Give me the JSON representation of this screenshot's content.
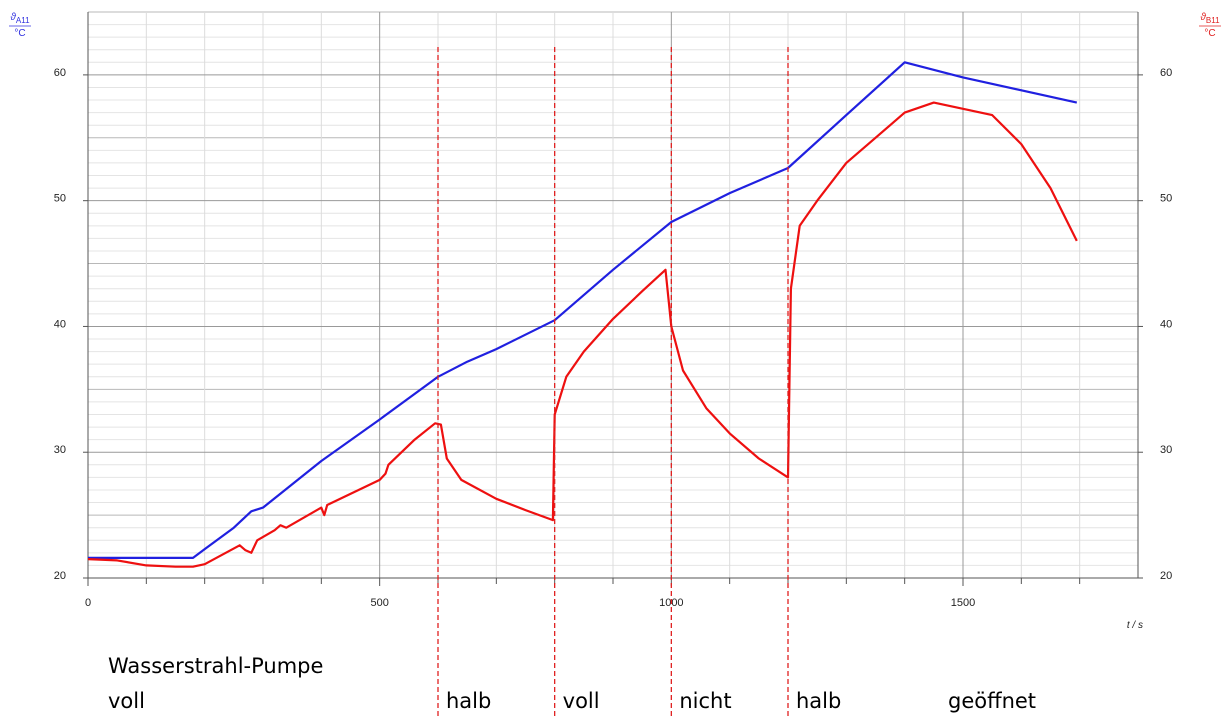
{
  "chart_data": {
    "type": "line",
    "xlim": [
      0,
      1800
    ],
    "xticks": [
      0,
      500,
      1000,
      1500
    ],
    "xminor": [
      100,
      200,
      300,
      400,
      600,
      700,
      800,
      900,
      1100,
      1200,
      1300,
      1400,
      1600,
      1700
    ],
    "ylim": [
      20,
      65
    ],
    "yticks": [
      20,
      30,
      40,
      50,
      60
    ],
    "y2lim": [
      20,
      65
    ],
    "y2ticks": [
      20,
      30,
      40,
      50,
      60
    ],
    "yminor": [
      21,
      22,
      23,
      24,
      25,
      26,
      27,
      28,
      29,
      31,
      32,
      33,
      34,
      35,
      36,
      37,
      38,
      39,
      41,
      42,
      43,
      44,
      45,
      46,
      47,
      48,
      49,
      51,
      52,
      53,
      54,
      55,
      56,
      57,
      58,
      59,
      61,
      62,
      63,
      64,
      65
    ],
    "grid": true,
    "ylabel_symbol": "ϑ",
    "ylabel_sub": "A11",
    "yunit": "°C",
    "ylabel_color": "#3030e0",
    "y2label_symbol": "ϑ",
    "y2label_sub": "B11",
    "y2unit": "°C",
    "y2label_color": "#e02020",
    "xlabel": "t / s",
    "series": [
      {
        "color": "#2020e0",
        "axis": "y",
        "x": [
          0,
          100,
          180,
          200,
          250,
          280,
          300,
          400,
          500,
          600,
          650,
          700,
          800,
          900,
          1000,
          1100,
          1200,
          1300,
          1400,
          1500,
          1695
        ],
        "values": [
          21.6,
          21.6,
          21.6,
          22.3,
          24.0,
          25.3,
          25.6,
          29.3,
          32.6,
          36.0,
          37.2,
          38.2,
          40.5,
          44.5,
          48.3,
          50.6,
          52.6,
          56.8,
          61.0,
          59.8,
          57.8
        ]
      },
      {
        "color": "#ee1010",
        "axis": "y2",
        "x": [
          0,
          50,
          100,
          150,
          180,
          200,
          260,
          270,
          280,
          290,
          320,
          330,
          340,
          400,
          405,
          410,
          500,
          510,
          515,
          560,
          595,
          605,
          615,
          640,
          700,
          750,
          797,
          800,
          820,
          850,
          900,
          950,
          990,
          1000,
          1020,
          1060,
          1100,
          1150,
          1200,
          1205,
          1220,
          1250,
          1300,
          1350,
          1400,
          1450,
          1500,
          1550,
          1600,
          1650,
          1695
        ],
        "values": [
          21.5,
          21.4,
          21.0,
          20.9,
          20.9,
          21.1,
          22.6,
          22.2,
          22.0,
          23.0,
          23.8,
          24.2,
          24.0,
          25.6,
          25.0,
          25.8,
          27.8,
          28.3,
          29.0,
          31.0,
          32.3,
          32.2,
          29.5,
          27.8,
          26.3,
          25.4,
          24.6,
          33.0,
          36.0,
          38.0,
          40.6,
          42.8,
          44.5,
          40.0,
          36.5,
          33.5,
          31.5,
          29.5,
          28.0,
          43.0,
          48.0,
          50.0,
          53.0,
          55.0,
          57.0,
          57.8,
          57.3,
          56.8,
          54.5,
          51.0,
          46.8
        ]
      }
    ],
    "vlines": [
      600,
      800,
      1000,
      1200
    ],
    "vline_color": "#e02020",
    "pump_label": "Wasserstrahl-Pumpe",
    "phase_labels": [
      "voll",
      "halb",
      "voll",
      "nicht",
      "halb",
      "geöffnet"
    ]
  }
}
